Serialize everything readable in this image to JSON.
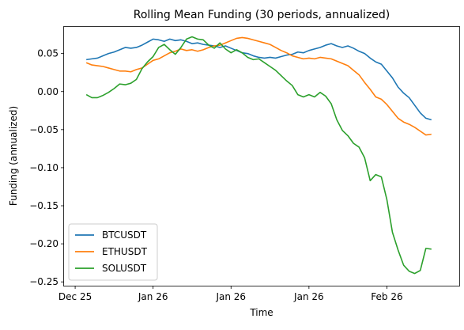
{
  "chart_data": {
    "type": "line",
    "title": "Rolling Mean Funding (30 periods, annualized)",
    "xlabel": "Time",
    "ylabel": "Funding (annualized)",
    "x_ticks": [
      "Dec 25",
      "Jan 26",
      "Jan 26",
      "Jan 26",
      "Feb 26"
    ],
    "x_tick_dates": [
      "2025-12-25",
      "2026-01-08",
      "2026-01-22",
      "2026-02-05",
      "2026-02-19"
    ],
    "y_ticks": [
      "0.05",
      "0.00",
      "−0.05",
      "−0.10",
      "−0.15",
      "−0.20",
      "−0.25"
    ],
    "ylim": [
      -0.255,
      0.085
    ],
    "xlim": [
      "2025-12-23",
      "2026-03-04"
    ],
    "grid": false,
    "legend_position": "lower-left",
    "series": [
      {
        "name": "BTCUSDT",
        "color": "#1f77b4",
        "points": [
          [
            "2025-12-27",
            0.042
          ],
          [
            "2025-12-28",
            0.043
          ],
          [
            "2025-12-29",
            0.044
          ],
          [
            "2025-12-30",
            0.047
          ],
          [
            "2025-12-31",
            0.05
          ],
          [
            "2026-01-01",
            0.052
          ],
          [
            "2026-01-02",
            0.055
          ],
          [
            "2026-01-03",
            0.058
          ],
          [
            "2026-01-04",
            0.057
          ],
          [
            "2026-01-05",
            0.058
          ],
          [
            "2026-01-06",
            0.061
          ],
          [
            "2026-01-07",
            0.065
          ],
          [
            "2026-01-08",
            0.069
          ],
          [
            "2026-01-09",
            0.068
          ],
          [
            "2026-01-10",
            0.066
          ],
          [
            "2026-01-11",
            0.069
          ],
          [
            "2026-01-12",
            0.067
          ],
          [
            "2026-01-13",
            0.068
          ],
          [
            "2026-01-14",
            0.066
          ],
          [
            "2026-01-15",
            0.063
          ],
          [
            "2026-01-16",
            0.064
          ],
          [
            "2026-01-17",
            0.062
          ],
          [
            "2026-01-18",
            0.061
          ],
          [
            "2026-01-19",
            0.06
          ],
          [
            "2026-01-20",
            0.058
          ],
          [
            "2026-01-21",
            0.06
          ],
          [
            "2026-01-22",
            0.057
          ],
          [
            "2026-01-23",
            0.054
          ],
          [
            "2026-01-24",
            0.051
          ],
          [
            "2026-01-25",
            0.05
          ],
          [
            "2026-01-26",
            0.047
          ],
          [
            "2026-01-27",
            0.045
          ],
          [
            "2026-01-28",
            0.044
          ],
          [
            "2026-01-29",
            0.045
          ],
          [
            "2026-01-30",
            0.044
          ],
          [
            "2026-01-31",
            0.046
          ],
          [
            "2026-02-01",
            0.048
          ],
          [
            "2026-02-02",
            0.049
          ],
          [
            "2026-02-03",
            0.052
          ],
          [
            "2026-02-04",
            0.051
          ],
          [
            "2026-02-05",
            0.054
          ],
          [
            "2026-02-06",
            0.056
          ],
          [
            "2026-02-07",
            0.058
          ],
          [
            "2026-02-08",
            0.061
          ],
          [
            "2026-02-09",
            0.063
          ],
          [
            "2026-02-10",
            0.06
          ],
          [
            "2026-02-11",
            0.058
          ],
          [
            "2026-02-12",
            0.06
          ],
          [
            "2026-02-13",
            0.057
          ],
          [
            "2026-02-14",
            0.053
          ],
          [
            "2026-02-15",
            0.05
          ],
          [
            "2026-02-16",
            0.044
          ],
          [
            "2026-02-17",
            0.039
          ],
          [
            "2026-02-18",
            0.036
          ],
          [
            "2026-02-19",
            0.027
          ],
          [
            "2026-02-20",
            0.018
          ],
          [
            "2026-02-21",
            0.006
          ],
          [
            "2026-02-22",
            -0.002
          ],
          [
            "2026-02-23",
            -0.008
          ],
          [
            "2026-02-24",
            -0.018
          ],
          [
            "2026-02-25",
            -0.028
          ],
          [
            "2026-02-26",
            -0.035
          ],
          [
            "2026-02-27",
            -0.037
          ]
        ]
      },
      {
        "name": "ETHUSDT",
        "color": "#ff7f0e",
        "points": [
          [
            "2025-12-27",
            0.038
          ],
          [
            "2025-12-28",
            0.035
          ],
          [
            "2025-12-29",
            0.034
          ],
          [
            "2025-12-30",
            0.033
          ],
          [
            "2025-12-31",
            0.031
          ],
          [
            "2026-01-01",
            0.029
          ],
          [
            "2026-01-02",
            0.027
          ],
          [
            "2026-01-03",
            0.027
          ],
          [
            "2026-01-04",
            0.026
          ],
          [
            "2026-01-05",
            0.029
          ],
          [
            "2026-01-06",
            0.031
          ],
          [
            "2026-01-07",
            0.036
          ],
          [
            "2026-01-08",
            0.041
          ],
          [
            "2026-01-09",
            0.043
          ],
          [
            "2026-01-10",
            0.047
          ],
          [
            "2026-01-11",
            0.051
          ],
          [
            "2026-01-12",
            0.053
          ],
          [
            "2026-01-13",
            0.056
          ],
          [
            "2026-01-14",
            0.054
          ],
          [
            "2026-01-15",
            0.055
          ],
          [
            "2026-01-16",
            0.053
          ],
          [
            "2026-01-17",
            0.055
          ],
          [
            "2026-01-18",
            0.058
          ],
          [
            "2026-01-19",
            0.06
          ],
          [
            "2026-01-20",
            0.061
          ],
          [
            "2026-01-21",
            0.064
          ],
          [
            "2026-01-22",
            0.067
          ],
          [
            "2026-01-23",
            0.07
          ],
          [
            "2026-01-24",
            0.071
          ],
          [
            "2026-01-25",
            0.07
          ],
          [
            "2026-01-26",
            0.068
          ],
          [
            "2026-01-27",
            0.066
          ],
          [
            "2026-01-28",
            0.064
          ],
          [
            "2026-01-29",
            0.062
          ],
          [
            "2026-01-30",
            0.058
          ],
          [
            "2026-01-31",
            0.054
          ],
          [
            "2026-02-01",
            0.051
          ],
          [
            "2026-02-02",
            0.047
          ],
          [
            "2026-02-03",
            0.045
          ],
          [
            "2026-02-04",
            0.043
          ],
          [
            "2026-02-05",
            0.044
          ],
          [
            "2026-02-06",
            0.043
          ],
          [
            "2026-02-07",
            0.045
          ],
          [
            "2026-02-08",
            0.044
          ],
          [
            "2026-02-09",
            0.043
          ],
          [
            "2026-02-10",
            0.04
          ],
          [
            "2026-02-11",
            0.037
          ],
          [
            "2026-02-12",
            0.034
          ],
          [
            "2026-02-13",
            0.028
          ],
          [
            "2026-02-14",
            0.022
          ],
          [
            "2026-02-15",
            0.012
          ],
          [
            "2026-02-16",
            0.003
          ],
          [
            "2026-02-17",
            -0.007
          ],
          [
            "2026-02-18",
            -0.01
          ],
          [
            "2026-02-19",
            -0.017
          ],
          [
            "2026-02-20",
            -0.026
          ],
          [
            "2026-02-21",
            -0.035
          ],
          [
            "2026-02-22",
            -0.04
          ],
          [
            "2026-02-23",
            -0.043
          ],
          [
            "2026-02-24",
            -0.047
          ],
          [
            "2026-02-25",
            -0.052
          ],
          [
            "2026-02-26",
            -0.057
          ],
          [
            "2026-02-27",
            -0.056
          ]
        ]
      },
      {
        "name": "SOLUSDT",
        "color": "#2ca02c",
        "points": [
          [
            "2025-12-27",
            -0.004
          ],
          [
            "2025-12-28",
            -0.008
          ],
          [
            "2025-12-29",
            -0.008
          ],
          [
            "2025-12-30",
            -0.005
          ],
          [
            "2025-12-31",
            -0.001
          ],
          [
            "2026-01-01",
            0.004
          ],
          [
            "2026-01-02",
            0.01
          ],
          [
            "2026-01-03",
            0.009
          ],
          [
            "2026-01-04",
            0.011
          ],
          [
            "2026-01-05",
            0.016
          ],
          [
            "2026-01-06",
            0.03
          ],
          [
            "2026-01-07",
            0.039
          ],
          [
            "2026-01-08",
            0.046
          ],
          [
            "2026-01-09",
            0.058
          ],
          [
            "2026-01-10",
            0.062
          ],
          [
            "2026-01-11",
            0.055
          ],
          [
            "2026-01-12",
            0.049
          ],
          [
            "2026-01-13",
            0.058
          ],
          [
            "2026-01-14",
            0.069
          ],
          [
            "2026-01-15",
            0.072
          ],
          [
            "2026-01-16",
            0.069
          ],
          [
            "2026-01-17",
            0.068
          ],
          [
            "2026-01-18",
            0.061
          ],
          [
            "2026-01-19",
            0.057
          ],
          [
            "2026-01-20",
            0.064
          ],
          [
            "2026-01-21",
            0.056
          ],
          [
            "2026-01-22",
            0.051
          ],
          [
            "2026-01-23",
            0.055
          ],
          [
            "2026-01-24",
            0.051
          ],
          [
            "2026-01-25",
            0.045
          ],
          [
            "2026-01-26",
            0.042
          ],
          [
            "2026-01-27",
            0.043
          ],
          [
            "2026-01-28",
            0.038
          ],
          [
            "2026-01-29",
            0.033
          ],
          [
            "2026-01-30",
            0.028
          ],
          [
            "2026-01-31",
            0.021
          ],
          [
            "2026-02-01",
            0.014
          ],
          [
            "2026-02-02",
            0.008
          ],
          [
            "2026-02-03",
            -0.004
          ],
          [
            "2026-02-04",
            -0.007
          ],
          [
            "2026-02-05",
            -0.004
          ],
          [
            "2026-02-06",
            -0.007
          ],
          [
            "2026-02-07",
            -0.001
          ],
          [
            "2026-02-08",
            -0.006
          ],
          [
            "2026-02-09",
            -0.016
          ],
          [
            "2026-02-10",
            -0.037
          ],
          [
            "2026-02-11",
            -0.051
          ],
          [
            "2026-02-12",
            -0.058
          ],
          [
            "2026-02-13",
            -0.068
          ],
          [
            "2026-02-14",
            -0.073
          ],
          [
            "2026-02-15",
            -0.087
          ],
          [
            "2026-02-16",
            -0.117
          ],
          [
            "2026-02-17",
            -0.109
          ],
          [
            "2026-02-18",
            -0.112
          ],
          [
            "2026-02-19",
            -0.142
          ],
          [
            "2026-02-20",
            -0.185
          ],
          [
            "2026-02-21",
            -0.208
          ],
          [
            "2026-02-22",
            -0.228
          ],
          [
            "2026-02-23",
            -0.236
          ],
          [
            "2026-02-24",
            -0.239
          ],
          [
            "2026-02-25",
            -0.235
          ],
          [
            "2026-02-26",
            -0.206
          ],
          [
            "2026-02-27",
            -0.207
          ]
        ]
      }
    ]
  }
}
